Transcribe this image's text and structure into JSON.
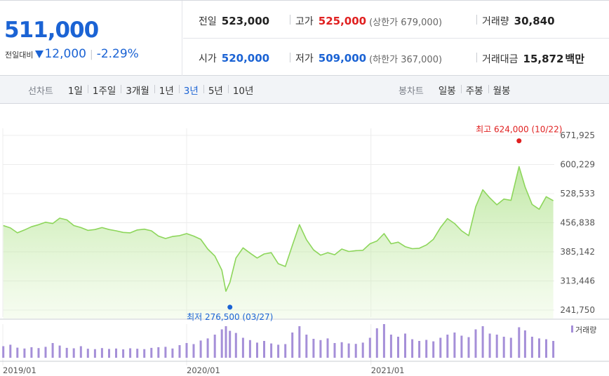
{
  "quote": {
    "price": "511,000",
    "compare_label": "전일대비",
    "change": "12,000",
    "change_rate": "-2.29%",
    "stats": {
      "prev_close": {
        "label": "전일",
        "value": "523,000"
      },
      "high": {
        "label": "고가",
        "value": "525,000",
        "limit_label": "상한가",
        "limit_value": "679,000"
      },
      "volume": {
        "label": "거래량",
        "value": "30,840"
      },
      "open": {
        "label": "시가",
        "value": "520,000"
      },
      "low": {
        "label": "저가",
        "value": "509,000",
        "limit_label": "하한가",
        "limit_value": "367,000"
      },
      "amount": {
        "label": "거래대금",
        "value": "15,872",
        "unit": "백만"
      }
    },
    "colors": {
      "up": "#e02020",
      "down": "#1b63d4"
    }
  },
  "toolbar": {
    "line_title": "선차트",
    "line_periods": [
      "1일",
      "1주일",
      "3개월",
      "1년",
      "3년",
      "5년",
      "10년"
    ],
    "active_period": "3년",
    "candle_title": "봉차트",
    "candle_periods": [
      "일봉",
      "주봉",
      "월봉"
    ]
  },
  "chart_data": {
    "type": "area",
    "title": "",
    "xlabel": "",
    "ylabel": "",
    "ylim": [
      241750,
      671925
    ],
    "yticks": [
      "671,925",
      "600,229",
      "528,533",
      "456,838",
      "385,142",
      "313,446",
      "241,750"
    ],
    "xticks": [
      "2019/01",
      "2020/01",
      "2021/01"
    ],
    "grid": true,
    "line_color": "#8dd65b",
    "fill_color": "#e6f7d6",
    "series": [
      {
        "x": [
          "2019/01/02",
          "2019/01/16",
          "2019/01/30",
          "2019/02/13",
          "2019/02/27",
          "2019/03/13",
          "2019/03/27",
          "2019/04/10",
          "2019/04/24",
          "2019/05/08",
          "2019/05/22",
          "2019/06/05",
          "2019/06/19",
          "2019/07/03",
          "2019/07/17",
          "2019/07/31",
          "2019/08/14",
          "2019/08/28",
          "2019/09/11",
          "2019/09/25",
          "2019/10/09",
          "2019/10/23",
          "2019/11/06",
          "2019/11/20",
          "2019/12/04",
          "2019/12/18",
          "2020/01/01",
          "2020/01/15",
          "2020/01/29",
          "2020/02/12",
          "2020/02/26",
          "2020/03/11",
          "2020/03/19",
          "2020/03/27",
          "2020/04/08",
          "2020/04/22",
          "2020/05/06",
          "2020/05/20",
          "2020/06/03",
          "2020/06/17",
          "2020/07/01",
          "2020/07/15",
          "2020/07/29",
          "2020/08/12",
          "2020/08/26",
          "2020/09/09",
          "2020/09/23",
          "2020/10/07",
          "2020/10/21",
          "2020/11/04",
          "2020/11/18",
          "2020/12/02",
          "2020/12/16",
          "2020/12/30",
          "2021/01/13",
          "2021/01/27",
          "2021/02/10",
          "2021/02/24",
          "2021/03/10",
          "2021/03/24",
          "2021/04/07",
          "2021/04/21",
          "2021/05/05",
          "2021/05/19",
          "2021/06/02",
          "2021/06/16",
          "2021/06/30",
          "2021/07/14",
          "2021/07/28",
          "2021/08/11",
          "2021/08/25",
          "2021/09/08",
          "2021/09/22",
          "2021/10/06",
          "2021/10/22",
          "2021/11/03",
          "2021/11/17",
          "2021/12/01",
          "2021/12/15",
          "2021/12/29"
        ],
        "values": [
          450000,
          444000,
          432000,
          439000,
          447000,
          452000,
          458000,
          455000,
          468000,
          464000,
          450000,
          445000,
          438000,
          440000,
          445000,
          440000,
          437000,
          433000,
          432000,
          439000,
          441000,
          437000,
          424000,
          418000,
          423000,
          425000,
          430000,
          424000,
          416000,
          392000,
          375000,
          340000,
          288000,
          310000,
          370000,
          395000,
          382000,
          370000,
          380000,
          383000,
          356000,
          349000,
          401000,
          452000,
          415000,
          390000,
          377000,
          383000,
          378000,
          392000,
          386000,
          388000,
          389000,
          405000,
          412000,
          430000,
          405000,
          409000,
          398000,
          393000,
          394000,
          402000,
          416000,
          445000,
          467000,
          455000,
          437000,
          425000,
          496000,
          538000,
          518000,
          501000,
          515000,
          512000,
          595000,
          545000,
          502000,
          490000,
          521000,
          511000
        ],
        "volumes": [
          55,
          62,
          48,
          44,
          50,
          46,
          52,
          70,
          58,
          47,
          45,
          55,
          43,
          41,
          46,
          42,
          44,
          40,
          45,
          43,
          41,
          47,
          50,
          52,
          44,
          60,
          70,
          65,
          82,
          92,
          110,
          135,
          150,
          128,
          118,
          95,
          84,
          72,
          80,
          68,
          62,
          65,
          120,
          150,
          110,
          90,
          84,
          92,
          70,
          74,
          68,
          66,
          72,
          95,
          140,
          160,
          110,
          100,
          115,
          88,
          80,
          85,
          78,
          95,
          110,
          120,
          105,
          98,
          135,
          150,
          115,
          110,
          100,
          95,
          145,
          130,
          100,
          92,
          88,
          80
        ]
      }
    ],
    "annotations": {
      "high": {
        "label": "최고",
        "value": 624000,
        "value_text": "624,000",
        "date": "2021/10/22",
        "date_text": "10/22"
      },
      "low": {
        "label": "최저",
        "value": 276500,
        "value_text": "276,500",
        "date": "2020/03/27",
        "date_text": "03/27"
      }
    },
    "volume_legend": "거래량",
    "volume_color": "#a58fd8"
  }
}
